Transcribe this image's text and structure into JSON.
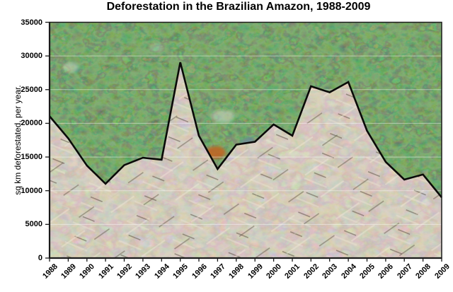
{
  "chart": {
    "title": "Deforestation in the Brazilian Amazon, 1988-2009",
    "y_axis_title": "sq km deforestated, per year."
  },
  "chart_data": {
    "type": "area",
    "title": "Deforestation in the Brazilian Amazon, 1988-2009",
    "xlabel": "",
    "ylabel": "sq km deforestated, per year.",
    "categories": [
      "1988",
      "1989",
      "1990",
      "1991",
      "1992",
      "1993",
      "1994",
      "1995",
      "1996",
      "1997",
      "1998",
      "1999",
      "2000",
      "2001",
      "2002",
      "2003",
      "2004",
      "2005",
      "2006",
      "2007",
      "2008",
      "2009"
    ],
    "values": [
      21050,
      17770,
      13730,
      11030,
      13786,
      14896,
      14600,
      29059,
      18161,
      13227,
      16838,
      17259,
      19836,
      18165,
      25500,
      24600,
      26130,
      18900,
      14286,
      11650,
      12400,
      9000
    ],
    "ylim": [
      0,
      35000
    ],
    "y_tick_interval": 5000,
    "y_tick_labels": [
      "0",
      "5000",
      "10000",
      "15000",
      "20000",
      "25000",
      "30000",
      "35000"
    ],
    "grid": "horizontal gridlines, thin pale lines over photo fill",
    "legend": "none",
    "x_tick_label_rotation": -45,
    "style_note": "area below line is a photo of clear-cut deforested ground with fallen logs; background above line is a photo of intact rainforest canopy"
  },
  "colors": {
    "line": "#0a0a08",
    "axis": "#1a1a1a",
    "gridline": "rgba(255,255,255,0.45)",
    "forest_dark_green": "#1d3a17",
    "forest_mid_green": "#33582a",
    "forest_light_green": "#557f3e",
    "ground_grey_brown": "#a99b8b",
    "ground_pale_log": "#e7dfcf",
    "accent_orange_tree": "#c2601f",
    "accent_blue_tree": "#6f86a0",
    "accent_dead_tree_white": "#cdd4c8",
    "text": "#000000",
    "background": "#ffffff"
  }
}
